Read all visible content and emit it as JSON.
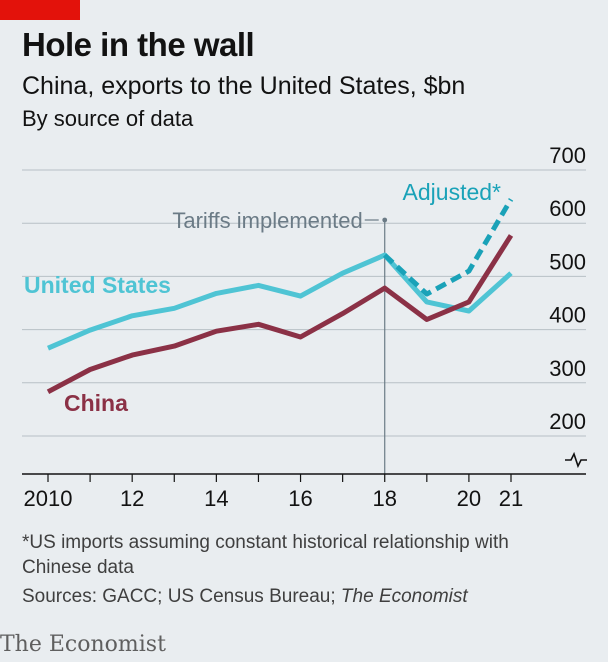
{
  "header": {
    "title": "Hole in the wall",
    "subtitle": "China, exports to the United States, $bn",
    "subsubtitle": "By source of data"
  },
  "footer": {
    "footnote": "*US imports assuming constant historical relationship with Chinese data",
    "sources_prefix": "Sources: GACC; US Census Bureau; ",
    "sources_publication": "The Economist",
    "brand": "The Economist"
  },
  "colors": {
    "china": "#8b3146",
    "united_states": "#4fc4d4",
    "adjusted": "#1aa2b8",
    "grid": "#b7c0c6",
    "annotation": "#6b7b86",
    "brand_red": "#e3120b"
  },
  "chart_data": {
    "type": "line",
    "x": [
      2010,
      2011,
      2012,
      2013,
      2014,
      2015,
      2016,
      2017,
      2018,
      2019,
      2020,
      2021
    ],
    "x_tick_values": [
      2010,
      2012,
      2014,
      2016,
      2018,
      2020,
      2021
    ],
    "x_tick_labels": [
      "2010",
      "12",
      "14",
      "16",
      "18",
      "20",
      "21"
    ],
    "y_ticks": [
      200,
      300,
      400,
      500,
      600,
      700
    ],
    "ylim": [
      150,
      700
    ],
    "y_axis_broken": true,
    "y_axis_position": "right",
    "series": [
      {
        "name": "United States",
        "style": "solid",
        "color_key": "united_states",
        "x": [
          2010,
          2011,
          2012,
          2013,
          2014,
          2015,
          2016,
          2017,
          2018,
          2019,
          2020,
          2021
        ],
        "values": [
          365,
          399,
          426,
          440,
          468,
          483,
          463,
          506,
          540,
          452,
          435,
          506
        ]
      },
      {
        "name": "China",
        "style": "solid",
        "color_key": "china",
        "x": [
          2010,
          2011,
          2012,
          2013,
          2014,
          2015,
          2016,
          2017,
          2018,
          2019,
          2020,
          2021
        ],
        "values": [
          283,
          325,
          352,
          369,
          397,
          410,
          386,
          430,
          478,
          419,
          452,
          577
        ]
      },
      {
        "name": "Adjusted*",
        "style": "dashed",
        "color_key": "adjusted",
        "x": [
          2018,
          2019,
          2020,
          2021
        ],
        "values": [
          540,
          467,
          510,
          645
        ]
      }
    ],
    "annotations": [
      {
        "text": "Tariffs implemented",
        "x": 2018
      }
    ]
  }
}
